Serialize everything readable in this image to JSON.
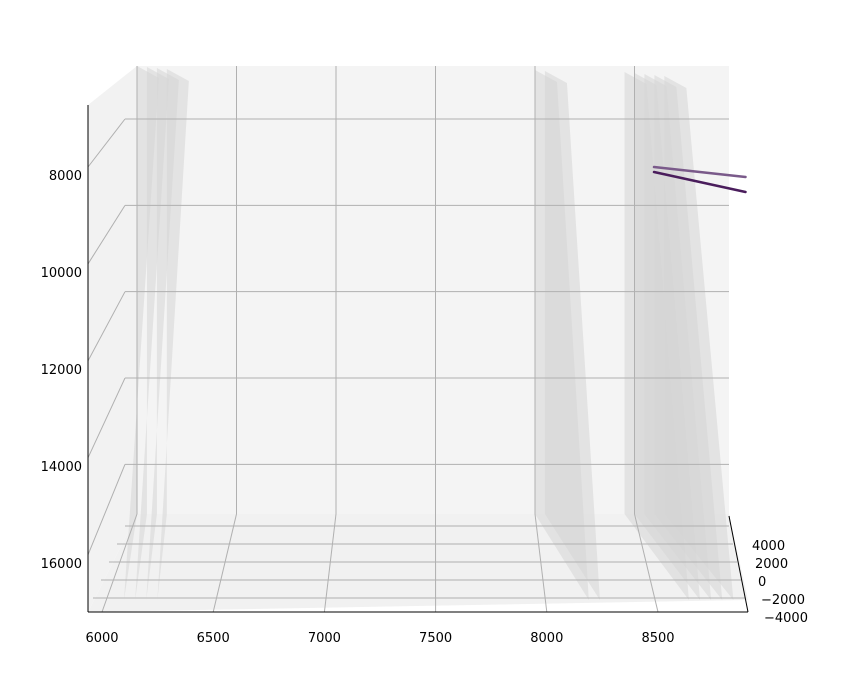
{
  "chart_data": {
    "type": "line",
    "projection": "3d",
    "title": "",
    "xlabel": "",
    "ylabel": "",
    "zlabel": "",
    "grid": true,
    "pane_color": "#ebebeb",
    "x_axis": {
      "ticks": [
        6000,
        6500,
        7000,
        7500,
        8000,
        8500
      ],
      "tick_labels": [
        "6000",
        "6500",
        "7000",
        "7500",
        "8000",
        "8500"
      ]
    },
    "y_axis": {
      "ticks": [
        4000,
        2000,
        0,
        -2000,
        -4000
      ],
      "tick_labels": [
        "4000",
        "2000",
        "0",
        "−2000",
        "−4000"
      ]
    },
    "z_axis": {
      "ticks": [
        8000,
        10000,
        12000,
        14000,
        16000
      ],
      "tick_labels": [
        "8000",
        "10000",
        "12000",
        "14000",
        "16000"
      ],
      "inverted": true
    },
    "slabs_x": [
      6000,
      6050,
      6100,
      6150,
      8000,
      8050,
      8450,
      8500,
      8550,
      8600,
      8650
    ],
    "series": [
      {
        "color": "#4a1d5c",
        "points": [
          {
            "x": 8500,
            "z": 8050
          },
          {
            "x": 8880,
            "z": 8450
          }
        ]
      },
      {
        "color": "#7a5a8a",
        "points": [
          {
            "x": 8500,
            "z": 7950
          },
          {
            "x": 8880,
            "z": 8150
          }
        ]
      }
    ]
  }
}
